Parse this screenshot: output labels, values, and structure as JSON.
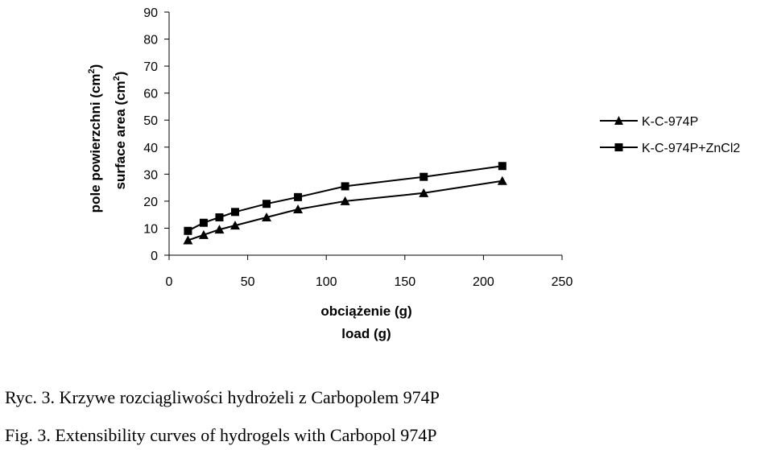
{
  "chart_data": {
    "type": "line",
    "xlabel_pl": "obciążenie (g)",
    "xlabel_en": "load (g)",
    "ylabel_pl": "pole powierzchni (cm",
    "ylabel_en": "surface area (cm",
    "ylabel_sup": "2",
    "ylabel_close": ")",
    "xlim": [
      0,
      250
    ],
    "ylim": [
      0,
      90
    ],
    "xticks": [
      "0",
      "50",
      "100",
      "150",
      "200",
      "250"
    ],
    "yticks": [
      "0",
      "10",
      "20",
      "30",
      "40",
      "50",
      "60",
      "70",
      "80",
      "90"
    ],
    "grid": false,
    "legend_position": "right",
    "series": [
      {
        "name": "K-C-974P",
        "marker": "triangle",
        "color": "#000000",
        "x": [
          12,
          22,
          32,
          42,
          62,
          82,
          112,
          162,
          212
        ],
        "y": [
          5.5,
          7.5,
          9.5,
          11,
          14,
          17,
          20,
          23,
          27.5
        ]
      },
      {
        "name": "K-C-974P+ZnCl2",
        "marker": "square",
        "color": "#000000",
        "x": [
          12,
          22,
          32,
          42,
          62,
          82,
          112,
          162,
          212
        ],
        "y": [
          9,
          12,
          14,
          16,
          19,
          21.5,
          25.5,
          29,
          33
        ]
      }
    ]
  },
  "captions": {
    "pl": "Ryc. 3. Krzywe rozciągliwości hydrożeli z Carbopolem 974P",
    "en": "Fig. 3. Extensibility curves of hydrogels with Carbopol 974P"
  }
}
